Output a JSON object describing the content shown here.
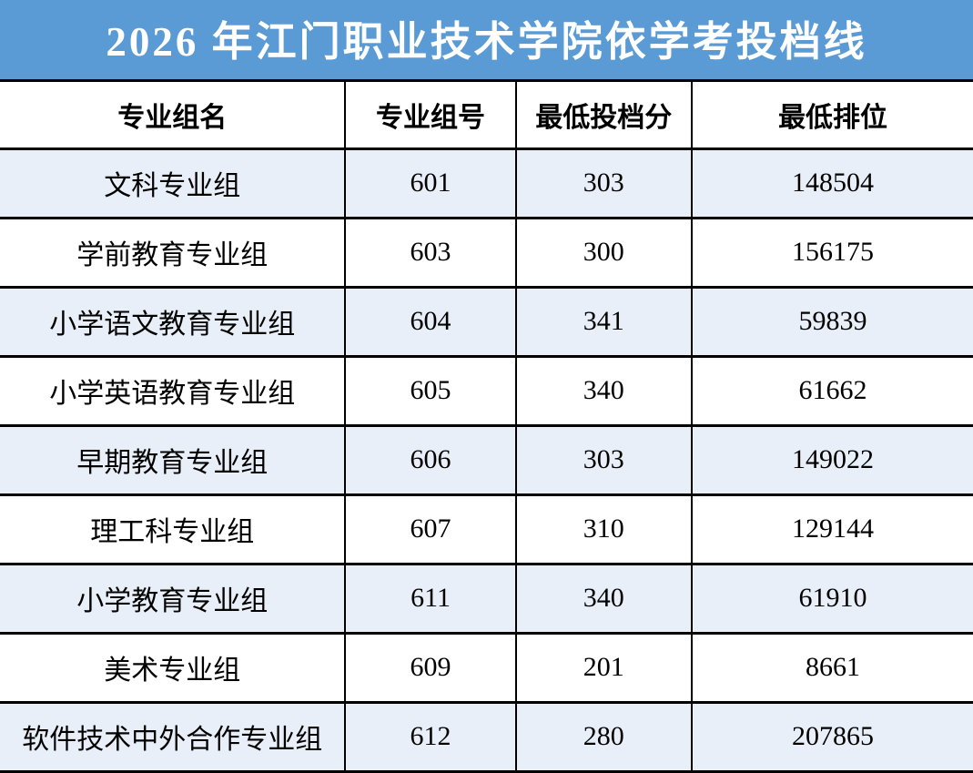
{
  "title": "2026 年江门职业技术学院依学考投档线",
  "chart_data": {
    "type": "table",
    "title": "2026 年江门职业技术学院依学考投档线",
    "columns": [
      "专业组名",
      "专业组号",
      "最低投档分",
      "最低排位"
    ],
    "rows": [
      [
        "文科专业组",
        601,
        303,
        148504
      ],
      [
        "学前教育专业组",
        603,
        300,
        156175
      ],
      [
        "小学语文教育专业组",
        604,
        341,
        59839
      ],
      [
        "小学英语教育专业组",
        605,
        340,
        61662
      ],
      [
        "早期教育专业组",
        606,
        303,
        149022
      ],
      [
        "理工科专业组",
        607,
        310,
        129144
      ],
      [
        "小学教育专业组",
        611,
        340,
        61910
      ],
      [
        "美术专业组",
        609,
        201,
        8661
      ],
      [
        "软件技术中外合作专业组",
        612,
        280,
        207865
      ]
    ],
    "layout": {
      "alternating_rows": "odd rows light blue starting with first data row",
      "grid": true,
      "header_position": "top"
    }
  },
  "colors": {
    "banner_bg": "#5B9BD5",
    "banner_text": "#FFFFFF",
    "alt_row_bg": "#E9EFF8",
    "row_bg": "#FFFFFF",
    "border": "#000000",
    "text": "#000000"
  }
}
